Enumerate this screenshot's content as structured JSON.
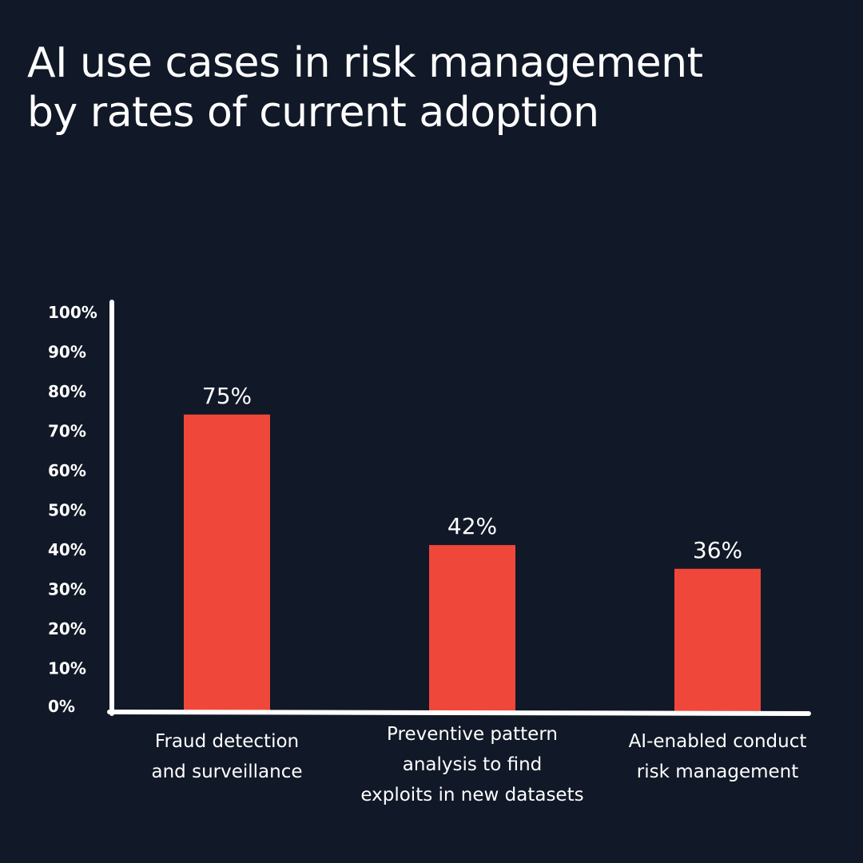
{
  "chart_data": {
    "type": "bar",
    "title": "AI use cases in risk management\nby rates of current adoption",
    "categories": [
      [
        "Fraud detection",
        "and surveillance"
      ],
      [
        "Preventive pattern",
        "analysis to find",
        "exploits in new datasets"
      ],
      [
        "AI-enabled conduct",
        "risk management"
      ]
    ],
    "values": [
      75,
      42,
      36
    ],
    "data_labels": [
      "75%",
      "42%",
      "36%"
    ],
    "yticks": [
      "0%",
      "10%",
      "20%",
      "30%",
      "40%",
      "50%",
      "60%",
      "70%",
      "80%",
      "90%",
      "100%"
    ],
    "ylim": [
      0,
      100
    ],
    "xlabel": "",
    "ylabel": "",
    "grid": false,
    "legend": "none",
    "colors": {
      "background": "#111827",
      "bar": "#f0473b",
      "text": "#ffffff",
      "axis": "#ffffff"
    }
  }
}
